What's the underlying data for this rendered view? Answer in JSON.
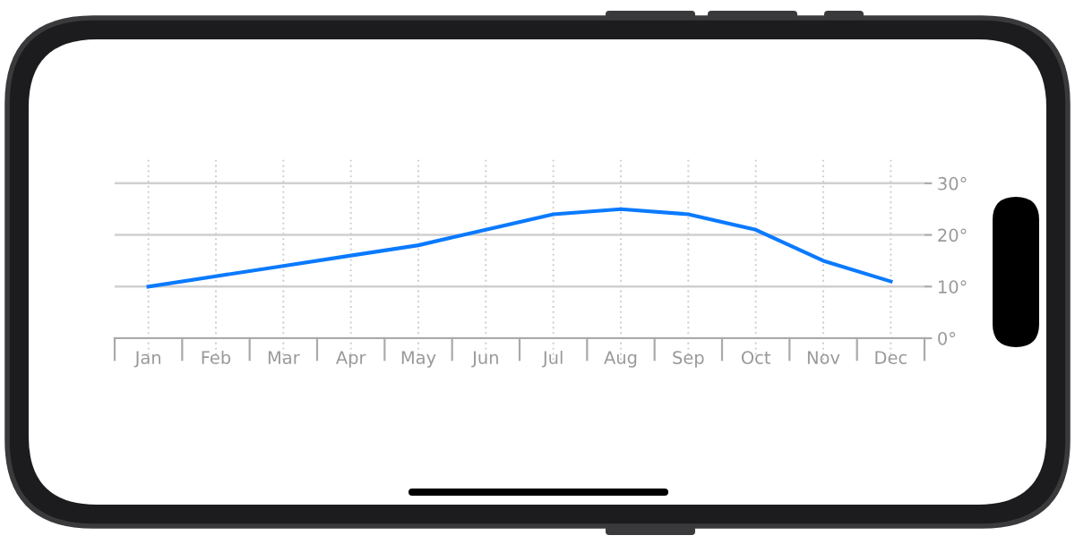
{
  "chart_data": {
    "type": "line",
    "categories": [
      "Jan",
      "Feb",
      "Mar",
      "Apr",
      "May",
      "Jun",
      "Jul",
      "Aug",
      "Sep",
      "Oct",
      "Nov",
      "Dec"
    ],
    "series": [
      {
        "color": "#0a7aff",
        "values": [
          10,
          12,
          14,
          16,
          18,
          21,
          24,
          25,
          24,
          21,
          15,
          11
        ]
      }
    ],
    "ylim": [
      0,
      35
    ],
    "yticks": [
      {
        "value": 0,
        "label": "0°"
      },
      {
        "value": 10,
        "label": "10°"
      },
      {
        "value": 20,
        "label": "20°"
      },
      {
        "value": 30,
        "label": "30°"
      }
    ],
    "grid": true,
    "marker": "none",
    "line_style": "solid"
  }
}
